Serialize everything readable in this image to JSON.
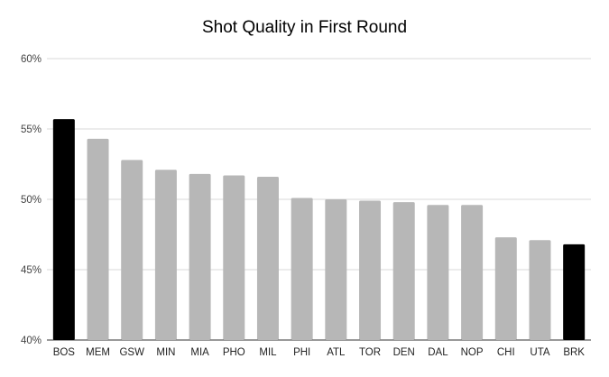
{
  "chart_data": {
    "type": "bar",
    "title": "Shot Quality in First Round",
    "xlabel": "",
    "ylabel": "",
    "ylim": [
      40,
      60
    ],
    "yticks": [
      "40%",
      "45%",
      "50%",
      "55%",
      "60%"
    ],
    "grid": true,
    "legend": "none",
    "categories": [
      "BOS",
      "MEM",
      "GSW",
      "MIN",
      "MIA",
      "PHO",
      "MIL",
      "PHI",
      "ATL",
      "TOR",
      "DEN",
      "DAL",
      "NOP",
      "CHI",
      "UTA",
      "BRK"
    ],
    "values": [
      55.7,
      54.3,
      52.8,
      52.1,
      51.8,
      51.7,
      51.6,
      50.1,
      50.0,
      49.9,
      49.8,
      49.6,
      49.6,
      47.3,
      47.1,
      46.8
    ],
    "colors": [
      "#000000",
      "#b7b7b7",
      "#b7b7b7",
      "#b7b7b7",
      "#b7b7b7",
      "#b7b7b7",
      "#b7b7b7",
      "#b7b7b7",
      "#b7b7b7",
      "#b7b7b7",
      "#b7b7b7",
      "#b7b7b7",
      "#b7b7b7",
      "#b7b7b7",
      "#b7b7b7",
      "#000000"
    ]
  }
}
